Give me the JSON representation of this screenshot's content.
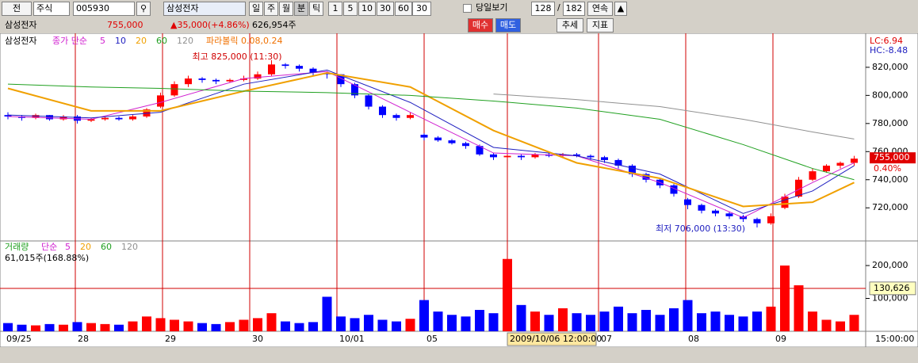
{
  "toolbar": {
    "market": "전",
    "kind": "주식",
    "code": "005930",
    "name": "삼성전자",
    "periods": [
      "일",
      "주",
      "월",
      "분",
      "틱"
    ],
    "intervals": [
      "1",
      "5",
      "10",
      "30",
      "60"
    ],
    "interval_value": "30",
    "today_view": "당일보기",
    "page": "128",
    "separator": "/",
    "total": "182",
    "continuous": "연속"
  },
  "quote": {
    "name": "삼성전자",
    "price": "755,000",
    "change": "▲35,000(+4.86%)",
    "volume": "626,954주",
    "buttons": [
      "매수",
      "매도",
      "추세",
      "지표"
    ]
  },
  "chart_data": {
    "type": "candlestick",
    "title": "삼성전자",
    "ma_prefix": "종가 단순",
    "sar_label": "파라볼릭 0.08,0.24",
    "lc": "LC:6.94",
    "hc": "HC:-8.48",
    "high_note": "최고 825,000 (11:30)",
    "low_note": "최저 706,000 (13:30)",
    "last_label": "755,000",
    "last_change": "0.40%",
    "ylim": [
      697000,
      842500
    ],
    "yticks": [
      {
        "value": 720000,
        "label": "720,000"
      },
      {
        "value": 740000,
        "label": "740,000"
      },
      {
        "value": 760000,
        "label": "760,000"
      },
      {
        "value": 780000,
        "label": "780,000"
      },
      {
        "value": 800000,
        "label": "800,000"
      },
      {
        "value": 820000,
        "label": "820,000"
      }
    ],
    "candles": [
      [
        786000,
        788000,
        783000,
        785000
      ],
      [
        785000,
        786000,
        782000,
        784000
      ],
      [
        784000,
        787000,
        783000,
        786000
      ],
      [
        786000,
        786000,
        782000,
        783000
      ],
      [
        783000,
        786000,
        782000,
        785000
      ],
      [
        785000,
        786000,
        780000,
        782000
      ],
      [
        782000,
        784000,
        781000,
        783000
      ],
      [
        783000,
        785000,
        782000,
        784000
      ],
      [
        784000,
        785000,
        782000,
        783000
      ],
      [
        783000,
        786000,
        782000,
        785000
      ],
      [
        785000,
        791000,
        784000,
        790000
      ],
      [
        792000,
        802000,
        791000,
        800000
      ],
      [
        800000,
        810000,
        799000,
        808000
      ],
      [
        808000,
        814000,
        806000,
        812000
      ],
      [
        812000,
        813000,
        809000,
        811000
      ],
      [
        811000,
        812000,
        808000,
        810000
      ],
      [
        810000,
        812000,
        809000,
        811000
      ],
      [
        811000,
        814000,
        810000,
        812000
      ],
      [
        812000,
        817000,
        811000,
        815000
      ],
      [
        815000,
        825000,
        814000,
        822000
      ],
      [
        822000,
        823000,
        819000,
        821000
      ],
      [
        821000,
        822000,
        817000,
        819000
      ],
      [
        819000,
        820000,
        814000,
        816000
      ],
      [
        816000,
        817000,
        812000,
        815000
      ],
      [
        815000,
        815000,
        806000,
        808000
      ],
      [
        808000,
        809000,
        798000,
        800000
      ],
      [
        800000,
        801000,
        790000,
        792000
      ],
      [
        792000,
        793000,
        784000,
        786000
      ],
      [
        786000,
        787000,
        782000,
        784000
      ],
      [
        784000,
        788000,
        783000,
        786000
      ],
      [
        772000,
        773000,
        768000,
        770000
      ],
      [
        770000,
        771000,
        767000,
        768000
      ],
      [
        768000,
        769000,
        765000,
        766000
      ],
      [
        766000,
        767000,
        762000,
        764000
      ],
      [
        764000,
        765000,
        757000,
        758000
      ],
      [
        758000,
        759000,
        754000,
        756000
      ],
      [
        756000,
        762000,
        755000,
        757000
      ],
      [
        757000,
        758000,
        754000,
        756000
      ],
      [
        756000,
        759000,
        755000,
        758000
      ],
      [
        758000,
        759000,
        756000,
        757000
      ],
      [
        757000,
        759000,
        756000,
        758000
      ],
      [
        758000,
        759000,
        756000,
        757000
      ],
      [
        757000,
        758000,
        754000,
        756000
      ],
      [
        756000,
        757000,
        752000,
        754000
      ],
      [
        754000,
        755000,
        748000,
        750000
      ],
      [
        750000,
        751000,
        742000,
        744000
      ],
      [
        744000,
        745000,
        738000,
        740000
      ],
      [
        740000,
        741000,
        734000,
        736000
      ],
      [
        736000,
        737000,
        728000,
        730000
      ],
      [
        726000,
        727000,
        719000,
        722000
      ],
      [
        722000,
        723000,
        716000,
        718000
      ],
      [
        718000,
        719000,
        714000,
        716000
      ],
      [
        716000,
        717000,
        712000,
        714000
      ],
      [
        714000,
        715000,
        710000,
        712000
      ],
      [
        712000,
        713000,
        706000,
        709000
      ],
      [
        709000,
        716000,
        708000,
        714000
      ],
      [
        720000,
        730000,
        719000,
        728000
      ],
      [
        728000,
        742000,
        727000,
        740000
      ],
      [
        740000,
        748000,
        739000,
        746000
      ],
      [
        746000,
        751000,
        745000,
        750000
      ],
      [
        750000,
        753000,
        748000,
        752000
      ],
      [
        752000,
        757000,
        750000,
        755000
      ]
    ],
    "ma_x": [
      0,
      6,
      11,
      17,
      23,
      29,
      35,
      41,
      47,
      53,
      58,
      61
    ],
    "ma_series": [
      {
        "name": "5",
        "color": "#d020d0",
        "values": [
          785000,
          783000,
          795000,
          812000,
          817000,
          788000,
          759000,
          757000,
          738000,
          713000,
          738000,
          752000
        ]
      },
      {
        "name": "10",
        "color": "#2020c0",
        "values": [
          786000,
          784000,
          788000,
          808000,
          818000,
          795000,
          763000,
          757000,
          744000,
          716000,
          732000,
          750000
        ]
      },
      {
        "name": "20",
        "color": "#f0a000",
        "values": [
          805000,
          789000,
          789000,
          803000,
          816000,
          806000,
          775000,
          752000,
          741000,
          721000,
          724000,
          738000
        ]
      },
      {
        "name": "60",
        "color": "#20a020",
        "values": [
          808000,
          806000,
          805000,
          803000,
          802000,
          800000,
          796000,
          791000,
          783000,
          765000,
          748000,
          740000
        ]
      },
      {
        "name": "120",
        "color": "#909090",
        "values": [
          null,
          null,
          null,
          null,
          null,
          null,
          801000,
          797000,
          792000,
          783000,
          774000,
          769000
        ]
      }
    ],
    "volume": {
      "title": "거래량",
      "ma_prefix": "단순",
      "ma_names": [
        "5",
        "20",
        "60",
        "120"
      ],
      "ma_colors": [
        "#d020d0",
        "#f0a000",
        "#20a020",
        "#909090"
      ],
      "readout": "61,015주(168.88%)",
      "values": [
        25000,
        20000,
        18000,
        22000,
        20000,
        28000,
        25000,
        22000,
        20000,
        30000,
        45000,
        40000,
        35000,
        30000,
        25000,
        22000,
        28000,
        35000,
        40000,
        55000,
        30000,
        25000,
        28000,
        105000,
        45000,
        40000,
        50000,
        35000,
        30000,
        38000,
        95000,
        60000,
        50000,
        45000,
        65000,
        55000,
        220000,
        80000,
        60000,
        50000,
        70000,
        55000,
        50000,
        60000,
        75000,
        55000,
        65000,
        50000,
        70000,
        95000,
        55000,
        60000,
        50000,
        45000,
        60000,
        75000,
        200000,
        140000,
        60000,
        35000,
        30000,
        50000
      ],
      "ylim": [
        0,
        270000
      ],
      "yticks": [
        {
          "value": 100000,
          "label": "100,000"
        },
        {
          "value": 200000,
          "label": "200,000"
        }
      ],
      "ref": {
        "value": 130626,
        "label": "130,626"
      }
    },
    "x_labels": [
      "09/25",
      "28",
      "29",
      "30",
      "10/01",
      "05",
      "2009/10/06 12:00:00",
      "07",
      "08",
      "09"
    ],
    "time_label": "15:00:00"
  }
}
